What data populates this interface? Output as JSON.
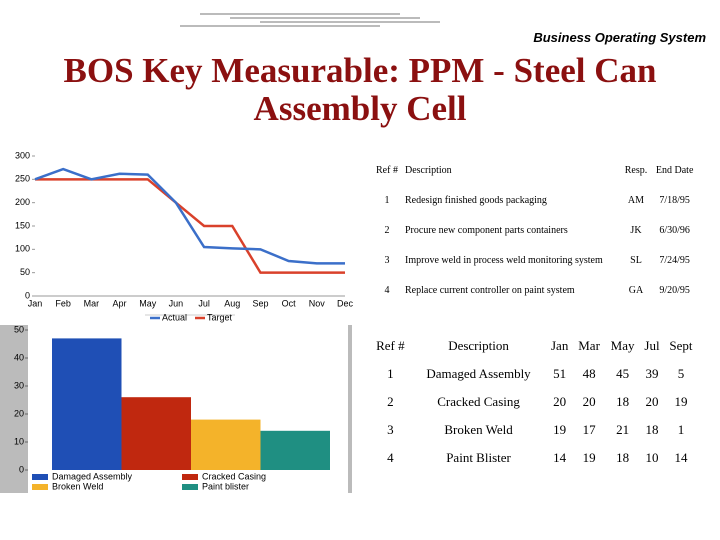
{
  "header": {
    "subtitle": "Business Operating System",
    "title": "BOS Key Measurable:  PPM - Steel Can Assembly Cell"
  },
  "chart_data": [
    {
      "type": "line",
      "categories": [
        "Jan",
        "Feb",
        "Mar",
        "Apr",
        "May",
        "Jun",
        "Jul",
        "Aug",
        "Sep",
        "Oct",
        "Nov",
        "Dec"
      ],
      "series": [
        {
          "name": "Actual",
          "color": "#3b6fc9",
          "values": [
            250,
            272,
            250,
            262,
            260,
            200,
            105,
            102,
            100,
            75,
            70,
            70
          ]
        },
        {
          "name": "Target",
          "color": "#d9412b",
          "values": [
            250,
            250,
            250,
            250,
            250,
            200,
            150,
            150,
            50,
            50,
            50,
            50
          ]
        }
      ],
      "ylim": [
        0,
        300
      ],
      "yticks": [
        0,
        50,
        100,
        150,
        200,
        250,
        300
      ],
      "grid": false
    },
    {
      "type": "bar",
      "categories": [
        "Damaged Assembly",
        "Cracked Casing",
        "Broken Weld",
        "Paint blister"
      ],
      "values": [
        47,
        26,
        18,
        14
      ],
      "colors": [
        "#1f4fb5",
        "#c0280f",
        "#f4b32a",
        "#1f8f82"
      ],
      "ylim": [
        0,
        50
      ],
      "yticks": [
        0,
        10,
        20,
        30,
        40,
        50
      ]
    }
  ],
  "action_table": {
    "header": [
      "Ref #",
      "Description",
      "Resp.",
      "End Date"
    ],
    "rows": [
      [
        "1",
        "Redesign finished goods packaging",
        "AM",
        "7/18/95"
      ],
      [
        "2",
        "Procure new component parts containers",
        "JK",
        "6/30/96"
      ],
      [
        "3",
        "Improve weld in process weld monitoring system",
        "SL",
        "7/24/95"
      ],
      [
        "4",
        "Replace current controller on paint system",
        "GA",
        "9/20/95"
      ]
    ]
  },
  "ppm_table": {
    "header": [
      "Ref #",
      "Description",
      "Jan",
      "Mar",
      "May",
      "Jul",
      "Sept"
    ],
    "rows": [
      [
        "1",
        "Damaged Assembly",
        "51",
        "48",
        "45",
        "39",
        "5"
      ],
      [
        "2",
        "Cracked Casing",
        "20",
        "20",
        "18",
        "20",
        "19"
      ],
      [
        "3",
        "Broken Weld",
        "19",
        "17",
        "21",
        "18",
        "1"
      ],
      [
        "4",
        "Paint Blister",
        "14",
        "19",
        "18",
        "10",
        "14"
      ]
    ]
  }
}
